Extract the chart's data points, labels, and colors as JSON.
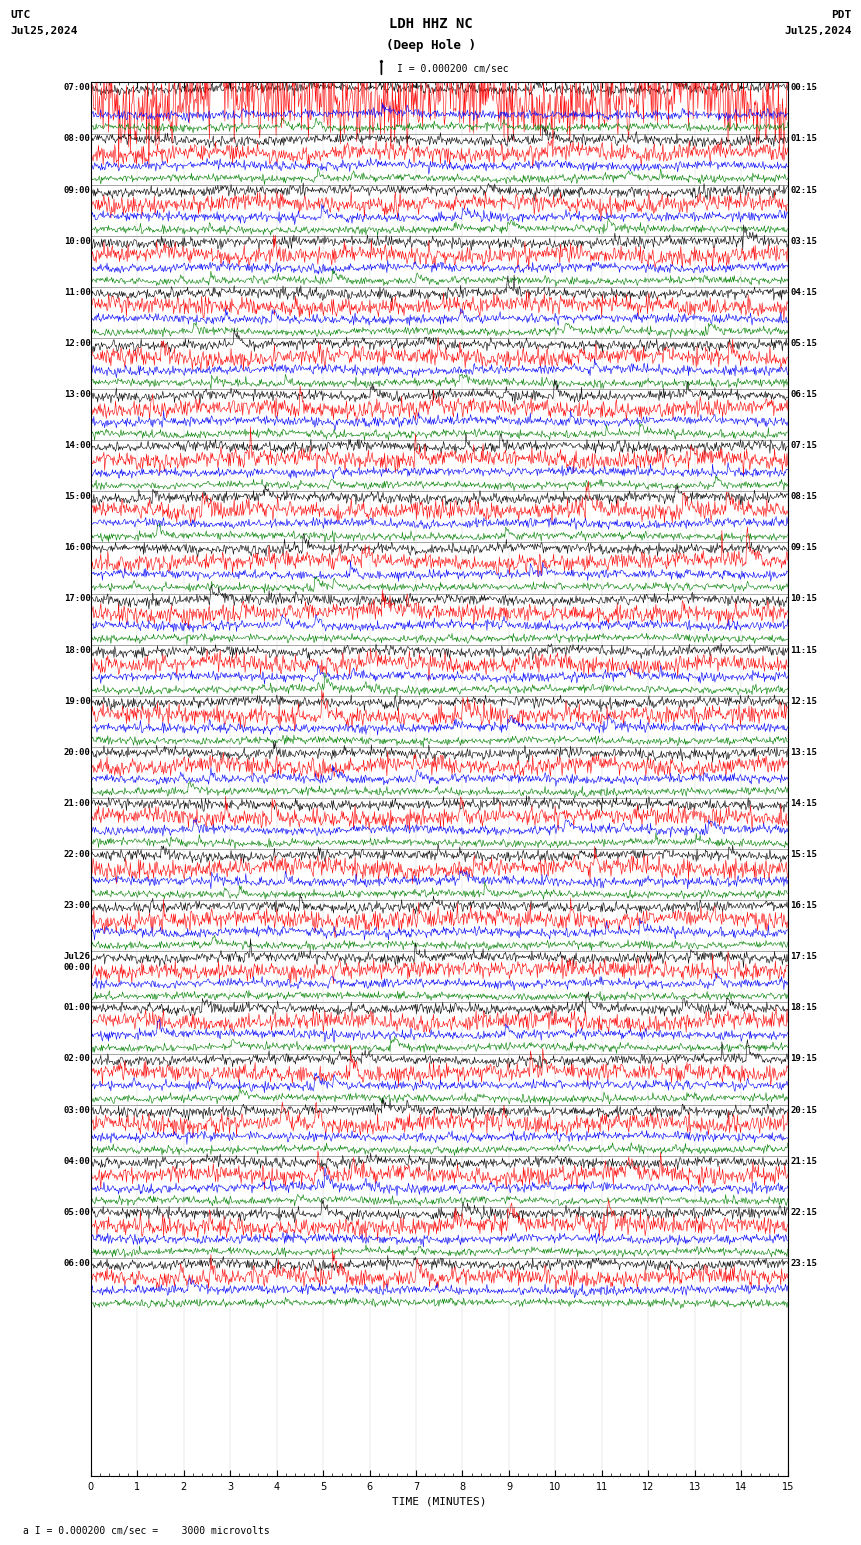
{
  "title_line1": "LDH HHZ NC",
  "title_line2": "(Deep Hole )",
  "scale_label": "I = 0.000200 cm/sec",
  "bottom_label": "a I = 0.000200 cm/sec =    3000 microvolts",
  "utc_label": "UTC",
  "pdt_label": "PDT",
  "date_left": "Jul25,2024",
  "date_right": "Jul25,2024",
  "xlabel": "TIME (MINUTES)",
  "xlim": [
    0,
    15
  ],
  "xticks": [
    0,
    1,
    2,
    3,
    4,
    5,
    6,
    7,
    8,
    9,
    10,
    11,
    12,
    13,
    14,
    15
  ],
  "background_color": "#ffffff",
  "trace_colors": [
    "black",
    "red",
    "blue",
    "green"
  ],
  "left_times": [
    "07:00",
    "08:00",
    "09:00",
    "10:00",
    "11:00",
    "12:00",
    "13:00",
    "14:00",
    "15:00",
    "16:00",
    "17:00",
    "18:00",
    "19:00",
    "20:00",
    "21:00",
    "22:00",
    "23:00",
    "Jul26\n00:00",
    "01:00",
    "02:00",
    "03:00",
    "04:00",
    "05:00",
    "06:00"
  ],
  "right_times": [
    "00:15",
    "01:15",
    "02:15",
    "03:15",
    "04:15",
    "05:15",
    "06:15",
    "07:15",
    "08:15",
    "09:15",
    "10:15",
    "11:15",
    "12:15",
    "13:15",
    "14:15",
    "15:15",
    "16:15",
    "17:15",
    "18:15",
    "19:15",
    "20:15",
    "21:15",
    "22:15",
    "23:15"
  ],
  "n_rows": 24,
  "traces_per_row": 4,
  "fig_width": 8.5,
  "fig_height": 15.84,
  "dpi": 100,
  "noise_scale": [
    0.35,
    0.6,
    0.3,
    0.25
  ],
  "first_row_scale": [
    0.35,
    2.5,
    0.5,
    0.25
  ]
}
